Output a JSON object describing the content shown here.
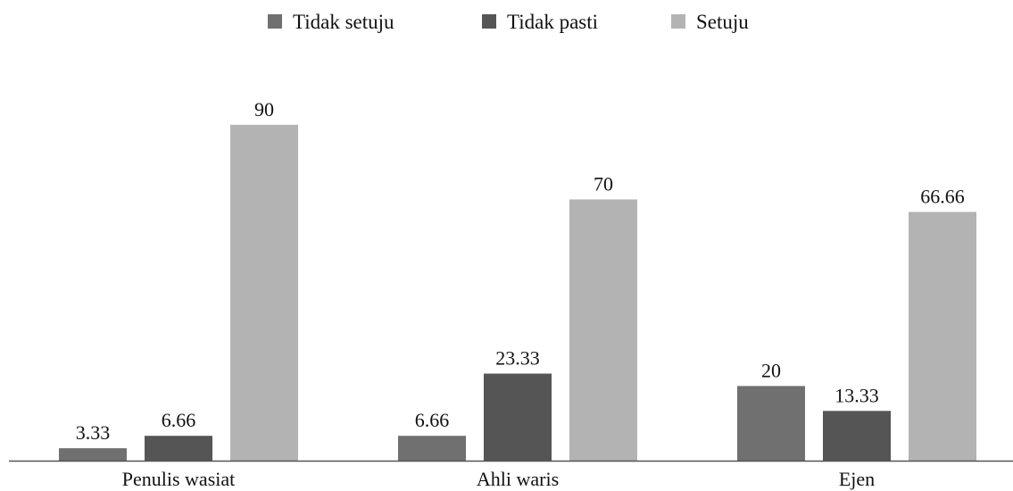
{
  "chart_data": {
    "type": "bar",
    "title": "",
    "xlabel": "",
    "ylabel": "",
    "categories": [
      "Penulis wasiat",
      "Ahli waris",
      "Ejen"
    ],
    "series": [
      {
        "name": "Tidak setuju",
        "values": [
          3.33,
          6.66,
          20
        ],
        "labels": [
          "3.33",
          "6.66",
          "20"
        ],
        "color": "#707070"
      },
      {
        "name": "Tidak pasti",
        "values": [
          6.66,
          23.33,
          13.33
        ],
        "labels": [
          "6.66",
          "23.33",
          "13.33"
        ],
        "color": "#555555"
      },
      {
        "name": "Setuju",
        "values": [
          90,
          70,
          66.66
        ],
        "labels": [
          "90",
          "70",
          "66.66"
        ],
        "color": "#b3b3b3"
      }
    ],
    "ylim": [
      0,
      100
    ],
    "grid": false,
    "legend_position": "top-center",
    "axis_color": "#555555"
  }
}
